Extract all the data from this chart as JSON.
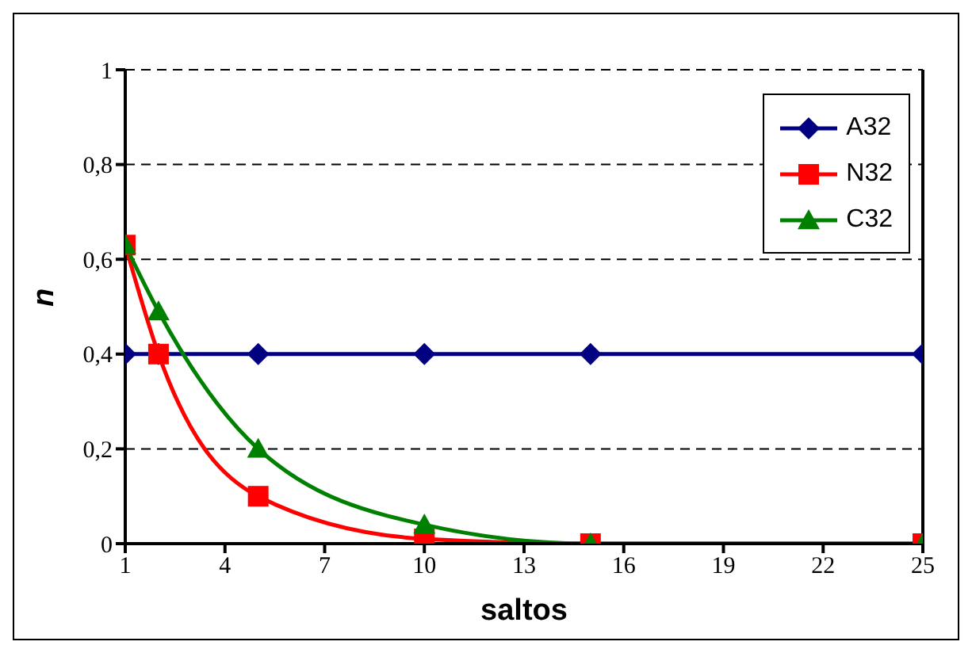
{
  "chart_data": {
    "type": "line",
    "xlabel": "saltos",
    "ylabel": "n",
    "x": [
      1,
      2,
      5,
      10,
      15,
      25
    ],
    "series": [
      {
        "name": "A32",
        "color": "#000080",
        "marker": "diamond",
        "values": [
          0.4,
          0.4,
          0.4,
          0.4,
          0.4,
          0.4
        ]
      },
      {
        "name": "N32",
        "color": "#ff0000",
        "marker": "square",
        "values": [
          0.63,
          0.4,
          0.1,
          0.01,
          0,
          0
        ]
      },
      {
        "name": "C32",
        "color": "#008000",
        "marker": "triangle",
        "values": [
          0.63,
          0.49,
          0.2,
          0.04,
          0,
          0
        ]
      }
    ],
    "xlim": [
      1,
      25
    ],
    "xticks": [
      1,
      4,
      7,
      10,
      13,
      16,
      19,
      22,
      25
    ],
    "ylim": [
      0,
      1
    ],
    "yticks": [
      0,
      {
        "value": 0.2,
        "label": "0,2"
      },
      {
        "value": 0.4,
        "label": "0,4"
      },
      {
        "value": 0.6,
        "label": "0,6"
      },
      {
        "value": 0.8,
        "label": "0,8"
      },
      1
    ],
    "grid": "y",
    "legend": "top right"
  }
}
